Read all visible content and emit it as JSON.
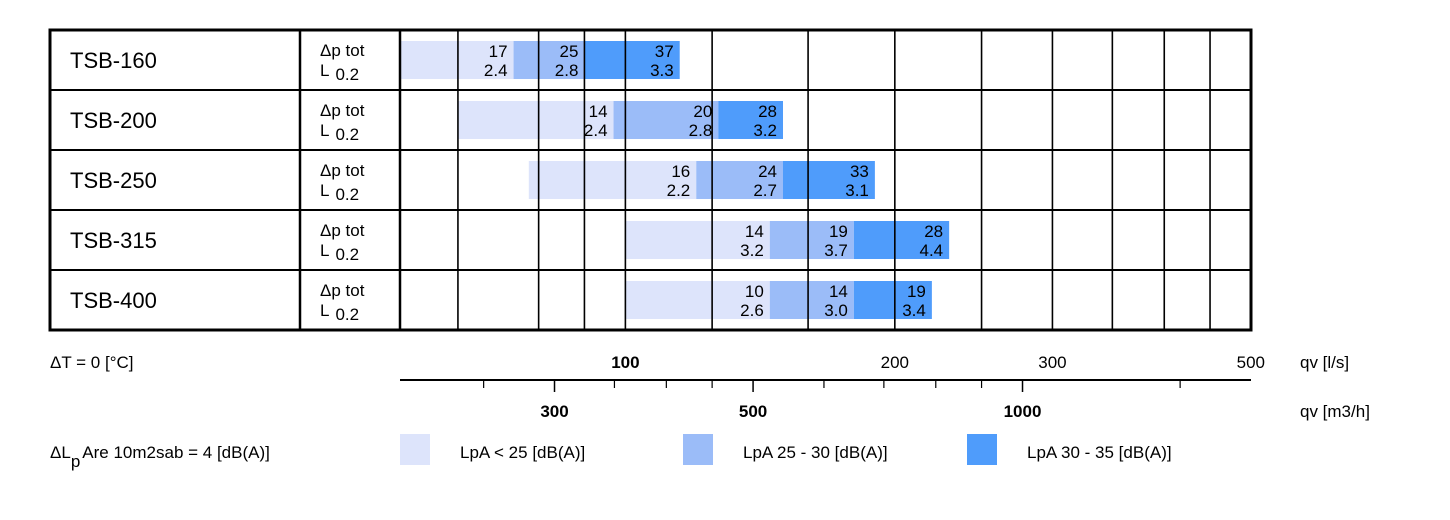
{
  "chart_data": {
    "type": "bar",
    "title": "",
    "categories": [
      "TSB-160",
      "TSB-200",
      "TSB-250",
      "TSB-315",
      "TSB-400"
    ],
    "row_param_labels": {
      "dp_label": "Δp tot",
      "l_label": "L",
      "l_sub": "0.2"
    },
    "x_axis_top": {
      "label": "qv [l/s]",
      "scale": "log",
      "range": [
        56,
        500
      ],
      "ticks": [
        {
          "value": 100,
          "label": "100",
          "bold": true
        },
        {
          "value": 200,
          "label": "200",
          "bold": false
        },
        {
          "value": 300,
          "label": "300",
          "bold": false
        },
        {
          "value": 500,
          "label": "500",
          "bold": false
        }
      ]
    },
    "x_axis_bottom": {
      "label": "qv [m3/h]",
      "scale": "log",
      "range": [
        201.6,
        1800
      ],
      "ticks": [
        {
          "value": 300,
          "label": "300",
          "bold": true
        },
        {
          "value": 500,
          "label": "500",
          "bold": true
        },
        {
          "value": 1000,
          "label": "1000",
          "bold": true
        }
      ],
      "minor_ticks": [
        250,
        350,
        400,
        450,
        600,
        700,
        800,
        900,
        1500
      ]
    },
    "grid_lines_lps": [
      65,
      80,
      90,
      100,
      125,
      160,
      200,
      250,
      300,
      350,
      400,
      450
    ],
    "series": [
      {
        "name": "LpA < 25 [dB(A)]",
        "color": "#dde4fb"
      },
      {
        "name": "LpA 25 - 30 [dB(A)]",
        "color": "#9bbcf8"
      },
      {
        "name": "LpA 30 - 35 [dB(A)]",
        "color": "#4f9cfb"
      }
    ],
    "rows": [
      {
        "name": "TSB-160",
        "segments": [
          {
            "from": 56,
            "to": 75,
            "dp": "17",
            "l": "2.4"
          },
          {
            "from": 75,
            "to": 90,
            "dp": "25",
            "l": "2.8"
          },
          {
            "from": 90,
            "to": 115,
            "dp": "37",
            "l": "3.3"
          }
        ]
      },
      {
        "name": "TSB-200",
        "segments": [
          {
            "from": 65,
            "to": 97,
            "dp": "14",
            "l": "2.4"
          },
          {
            "from": 97,
            "to": 127,
            "dp": "20",
            "l": "2.8"
          },
          {
            "from": 127,
            "to": 150,
            "dp": "28",
            "l": "3.2"
          }
        ]
      },
      {
        "name": "TSB-250",
        "segments": [
          {
            "from": 78,
            "to": 120,
            "dp": "16",
            "l": "2.2"
          },
          {
            "from": 120,
            "to": 150,
            "dp": "24",
            "l": "2.7"
          },
          {
            "from": 150,
            "to": 190,
            "dp": "33",
            "l": "3.1"
          }
        ]
      },
      {
        "name": "TSB-315",
        "segments": [
          {
            "from": 100,
            "to": 145,
            "dp": "14",
            "l": "3.2"
          },
          {
            "from": 145,
            "to": 180,
            "dp": "19",
            "l": "3.7"
          },
          {
            "from": 180,
            "to": 230,
            "dp": "28",
            "l": "4.4"
          }
        ]
      },
      {
        "name": "TSB-400",
        "segments": [
          {
            "from": 100,
            "to": 145,
            "dp": "10",
            "l": "2.6"
          },
          {
            "from": 145,
            "to": 180,
            "dp": "14",
            "l": "3.0"
          },
          {
            "from": 180,
            "to": 220,
            "dp": "19",
            "l": "3.4"
          }
        ]
      }
    ],
    "delta_t_label": "ΔT = 0 [°C]",
    "lp_note": {
      "prefix": "ΔL",
      "sub": "p",
      "suffix": "Are 10m2sab = 4 [dB(A)]"
    },
    "grid": true,
    "legend_position": "bottom"
  }
}
